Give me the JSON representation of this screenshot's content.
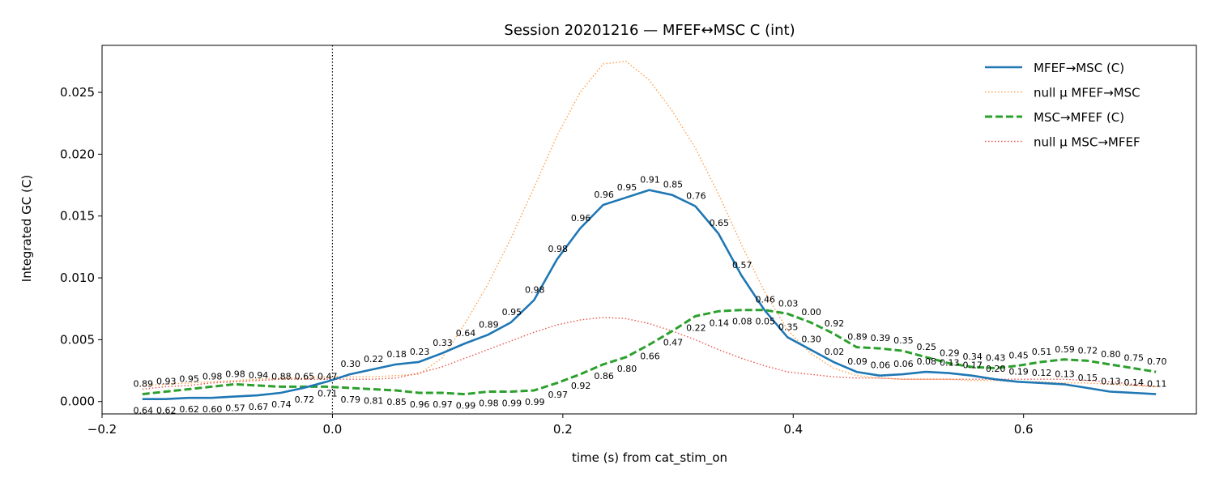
{
  "chart_data": {
    "type": "line",
    "title": "Session 20201216 — MFEF↔MSC C (int)",
    "xlabel": "time (s) from cat_stim_on",
    "ylabel": "Integrated GC (C)",
    "xlim": [
      -0.2,
      0.75
    ],
    "ylim": [
      -0.001,
      0.0288
    ],
    "xticks": [
      -0.2,
      0.0,
      0.2,
      0.4,
      0.6
    ],
    "xtick_labels": [
      "−0.2",
      "0.0",
      "0.2",
      "0.4",
      "0.6"
    ],
    "yticks": [
      0.0,
      0.005,
      0.01,
      0.015,
      0.02,
      0.025
    ],
    "ytick_labels": [
      "0.000",
      "0.005",
      "0.010",
      "0.015",
      "0.020",
      "0.025"
    ],
    "event_line_x": 0.0,
    "grid": false,
    "legend_position": "top-right",
    "x": [
      -0.165,
      -0.145,
      -0.125,
      -0.105,
      -0.085,
      -0.065,
      -0.045,
      -0.025,
      -0.005,
      0.015,
      0.035,
      0.055,
      0.075,
      0.095,
      0.115,
      0.135,
      0.155,
      0.175,
      0.195,
      0.215,
      0.235,
      0.255,
      0.275,
      0.295,
      0.315,
      0.335,
      0.355,
      0.375,
      0.395,
      0.415,
      0.435,
      0.455,
      0.475,
      0.495,
      0.515,
      0.535,
      0.555,
      0.575,
      0.595,
      0.615,
      0.635,
      0.655,
      0.675,
      0.695,
      0.715
    ],
    "series": [
      {
        "name": "MFEF→MSC (C)",
        "color": "#1f77b4",
        "style": "solid",
        "values": [
          0.0002,
          0.0002,
          0.0003,
          0.0003,
          0.0004,
          0.0005,
          0.0007,
          0.0011,
          0.0016,
          0.0022,
          0.0026,
          0.003,
          0.0032,
          0.0039,
          0.0047,
          0.0054,
          0.0064,
          0.0082,
          0.0115,
          0.014,
          0.0159,
          0.0165,
          0.0171,
          0.0167,
          0.0158,
          0.0136,
          0.0102,
          0.0074,
          0.0052,
          0.0042,
          0.0032,
          0.0024,
          0.0021,
          0.0022,
          0.0024,
          0.0023,
          0.0021,
          0.0018,
          0.0016,
          0.0015,
          0.0014,
          0.0011,
          0.0008,
          0.0007,
          0.0006
        ],
        "p_values": [
          "0.64",
          "0.62",
          "0.62",
          "0.60",
          "0.57",
          "0.67",
          "0.74",
          "0.72",
          "0.71",
          "0.30",
          "0.22",
          "0.18",
          "0.23",
          "0.33",
          "0.64",
          "0.89",
          "0.95",
          "0.98",
          "0.98",
          "0.96",
          "0.96",
          "0.95",
          "0.91",
          "0.85",
          "0.76",
          "0.65",
          "0.57",
          "0.46",
          "0.35",
          "0.30",
          "0.02",
          "0.09",
          "0.06",
          "0.06",
          "0.08",
          "0.13",
          "0.17",
          "0.20",
          "0.19",
          "0.12",
          "0.13",
          "0.15",
          "0.13",
          "0.14",
          "0.11"
        ]
      },
      {
        "name": "null μ MFEF→MSC",
        "color": "#ff9f4a",
        "style": "dotted",
        "values": [
          0.0013,
          0.0014,
          0.0015,
          0.0016,
          0.0017,
          0.0018,
          0.0019,
          0.0019,
          0.002,
          0.002,
          0.002,
          0.0021,
          0.0022,
          0.0035,
          0.0063,
          0.0095,
          0.0132,
          0.0173,
          0.0215,
          0.025,
          0.0273,
          0.0275,
          0.026,
          0.0235,
          0.0205,
          0.0168,
          0.0127,
          0.0089,
          0.0058,
          0.0039,
          0.0027,
          0.0021,
          0.0019,
          0.0018,
          0.0018,
          0.0018,
          0.0017,
          0.0017,
          0.0016,
          0.0016,
          0.0015,
          0.0015,
          0.0014,
          0.0013,
          0.0012
        ]
      },
      {
        "name": "MSC→MFEF (C)",
        "color": "#2ca02c",
        "style": "dashed",
        "values": [
          0.0006,
          0.0008,
          0.001,
          0.0012,
          0.0014,
          0.0013,
          0.0012,
          0.0012,
          0.0012,
          0.0011,
          0.001,
          0.0009,
          0.0007,
          0.0007,
          0.0006,
          0.0008,
          0.0008,
          0.0009,
          0.0015,
          0.0022,
          0.003,
          0.0036,
          0.0046,
          0.0057,
          0.0069,
          0.0073,
          0.0074,
          0.0074,
          0.0071,
          0.0064,
          0.0055,
          0.0044,
          0.0043,
          0.0041,
          0.0036,
          0.0031,
          0.0028,
          0.0027,
          0.0029,
          0.0032,
          0.0034,
          0.0033,
          0.003,
          0.0027,
          0.0024
        ],
        "p_values": [
          "0.89",
          "0.93",
          "0.95",
          "0.98",
          "0.98",
          "0.94",
          "0.88",
          "0.65",
          "0.47",
          "0.79",
          "0.81",
          "0.85",
          "0.96",
          "0.97",
          "0.99",
          "0.98",
          "0.99",
          "0.99",
          "0.97",
          "0.92",
          "0.86",
          "0.80",
          "0.66",
          "0.47",
          "0.22",
          "0.14",
          "0.08",
          "0.05",
          "0.03",
          "0.00",
          "0.92",
          "0.89",
          "0.39",
          "0.35",
          "0.25",
          "0.29",
          "0.34",
          "0.43",
          "0.45",
          "0.51",
          "0.59",
          "0.72",
          "0.80",
          "0.75",
          "0.70"
        ]
      },
      {
        "name": "null μ MSC→MFEF",
        "color": "#e8534a",
        "style": "dotted",
        "values": [
          0.001,
          0.0012,
          0.0013,
          0.0015,
          0.0016,
          0.0017,
          0.0018,
          0.0018,
          0.0018,
          0.0018,
          0.0018,
          0.0019,
          0.0023,
          0.0028,
          0.0035,
          0.0042,
          0.0049,
          0.0056,
          0.0062,
          0.0066,
          0.0068,
          0.0067,
          0.0063,
          0.0057,
          0.005,
          0.0042,
          0.0035,
          0.0029,
          0.0024,
          0.0022,
          0.002,
          0.0019,
          0.0019,
          0.0018,
          0.0018,
          0.0018,
          0.0018,
          0.0018,
          0.0018,
          0.0018,
          0.0018,
          0.0017,
          0.0016,
          0.0014,
          0.0012
        ]
      }
    ]
  }
}
